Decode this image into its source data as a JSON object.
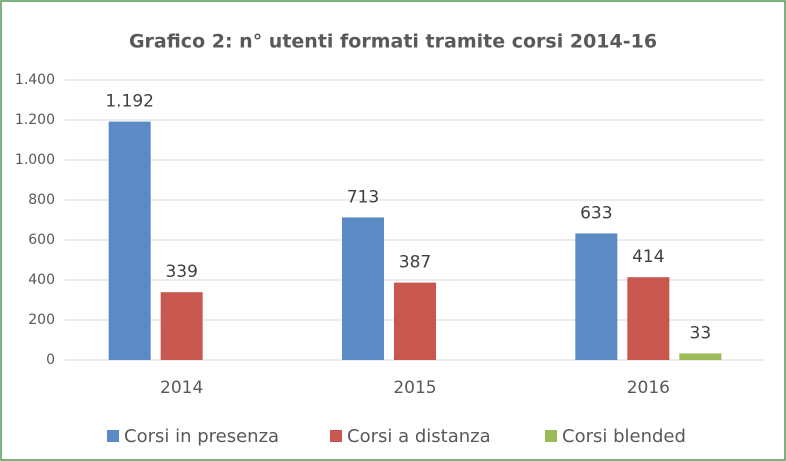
{
  "chart_data": {
    "type": "bar",
    "title": "Grafico 2: n° utenti formati tramite corsi 2014-16",
    "categories": [
      "2014",
      "2015",
      "2016"
    ],
    "series": [
      {
        "name": "Corsi in presenza",
        "color": "#5b8ac5",
        "values": [
          1192,
          713,
          633
        ],
        "value_labels": [
          "1.192",
          "713",
          "633"
        ]
      },
      {
        "name": "Corsi a distanza",
        "color": "#c8574f",
        "values": [
          339,
          387,
          414
        ]
      },
      {
        "name": "Corsi blended",
        "color": "#9bbb59",
        "values": [
          null,
          null,
          33
        ]
      }
    ],
    "ylim": [
      0,
      1400
    ],
    "yticks": [
      0,
      200,
      400,
      600,
      800,
      {
        "value": 1000,
        "label": "1.000"
      },
      {
        "value": 1200,
        "label": "1.200"
      },
      {
        "value": 1400,
        "label": "1.400"
      }
    ],
    "grid": true,
    "legend": "bottom"
  }
}
